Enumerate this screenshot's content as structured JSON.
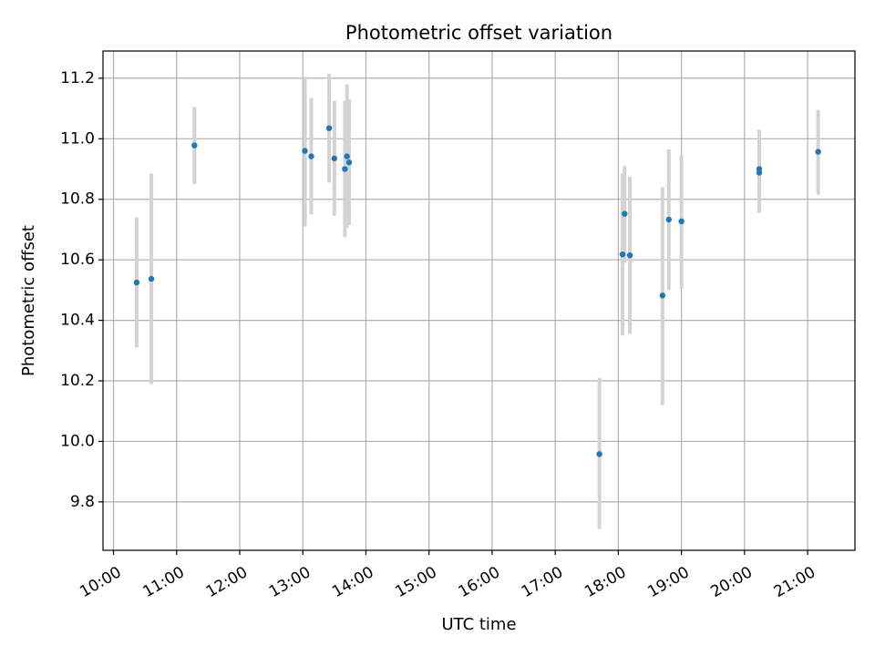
{
  "chart_data": {
    "type": "scatter",
    "title": "Photometric offset variation",
    "xlabel": "UTC time",
    "ylabel": "Photometric offset",
    "x_unit": "hour",
    "xlim": [
      "09:50",
      "21:45"
    ],
    "ylim": [
      9.64,
      11.29
    ],
    "x_ticks": [
      "10:00",
      "11:00",
      "12:00",
      "13:00",
      "14:00",
      "15:00",
      "16:00",
      "17:00",
      "18:00",
      "19:00",
      "20:00",
      "21:00"
    ],
    "y_ticks": [
      "9.8",
      "10.0",
      "10.2",
      "10.4",
      "10.6",
      "10.8",
      "11.0",
      "11.2"
    ],
    "grid": true,
    "colors": {
      "points": "#1f77b4",
      "errorbars": "#d3d3d3",
      "grid": "#b0b0b0"
    },
    "points": [
      {
        "x": "10:22",
        "y": 10.525,
        "lo": 10.31,
        "hi": 10.74
      },
      {
        "x": "10:36",
        "y": 10.537,
        "lo": 10.19,
        "hi": 10.885
      },
      {
        "x": "11:17",
        "y": 10.978,
        "lo": 10.85,
        "hi": 11.105
      },
      {
        "x": "13:02",
        "y": 10.96,
        "lo": 10.71,
        "hi": 11.205
      },
      {
        "x": "13:08",
        "y": 10.942,
        "lo": 10.75,
        "hi": 11.135
      },
      {
        "x": "13:25",
        "y": 11.035,
        "lo": 10.855,
        "hi": 11.215
      },
      {
        "x": "13:30",
        "y": 10.935,
        "lo": 10.745,
        "hi": 11.125
      },
      {
        "x": "13:40",
        "y": 10.9,
        "lo": 10.675,
        "hi": 11.125
      },
      {
        "x": "13:42",
        "y": 10.942,
        "lo": 10.705,
        "hi": 11.18
      },
      {
        "x": "13:44",
        "y": 10.922,
        "lo": 10.715,
        "hi": 11.13
      },
      {
        "x": "17:42",
        "y": 9.958,
        "lo": 9.71,
        "hi": 10.21
      },
      {
        "x": "18:04",
        "y": 10.618,
        "lo": 10.35,
        "hi": 10.885
      },
      {
        "x": "18:06",
        "y": 10.752,
        "lo": 10.59,
        "hi": 10.91
      },
      {
        "x": "18:11",
        "y": 10.615,
        "lo": 10.355,
        "hi": 10.875
      },
      {
        "x": "18:42",
        "y": 10.482,
        "lo": 10.12,
        "hi": 10.84
      },
      {
        "x": "18:48",
        "y": 10.733,
        "lo": 10.5,
        "hi": 10.965
      },
      {
        "x": "19:00",
        "y": 10.727,
        "lo": 10.505,
        "hi": 10.948
      },
      {
        "x": "20:14",
        "y": 10.9,
        "lo": 10.77,
        "hi": 11.03
      },
      {
        "x": "20:14",
        "y": 10.888,
        "lo": 10.755,
        "hi": 11.02
      },
      {
        "x": "21:10",
        "y": 10.957,
        "lo": 10.815,
        "hi": 11.095
      }
    ]
  }
}
